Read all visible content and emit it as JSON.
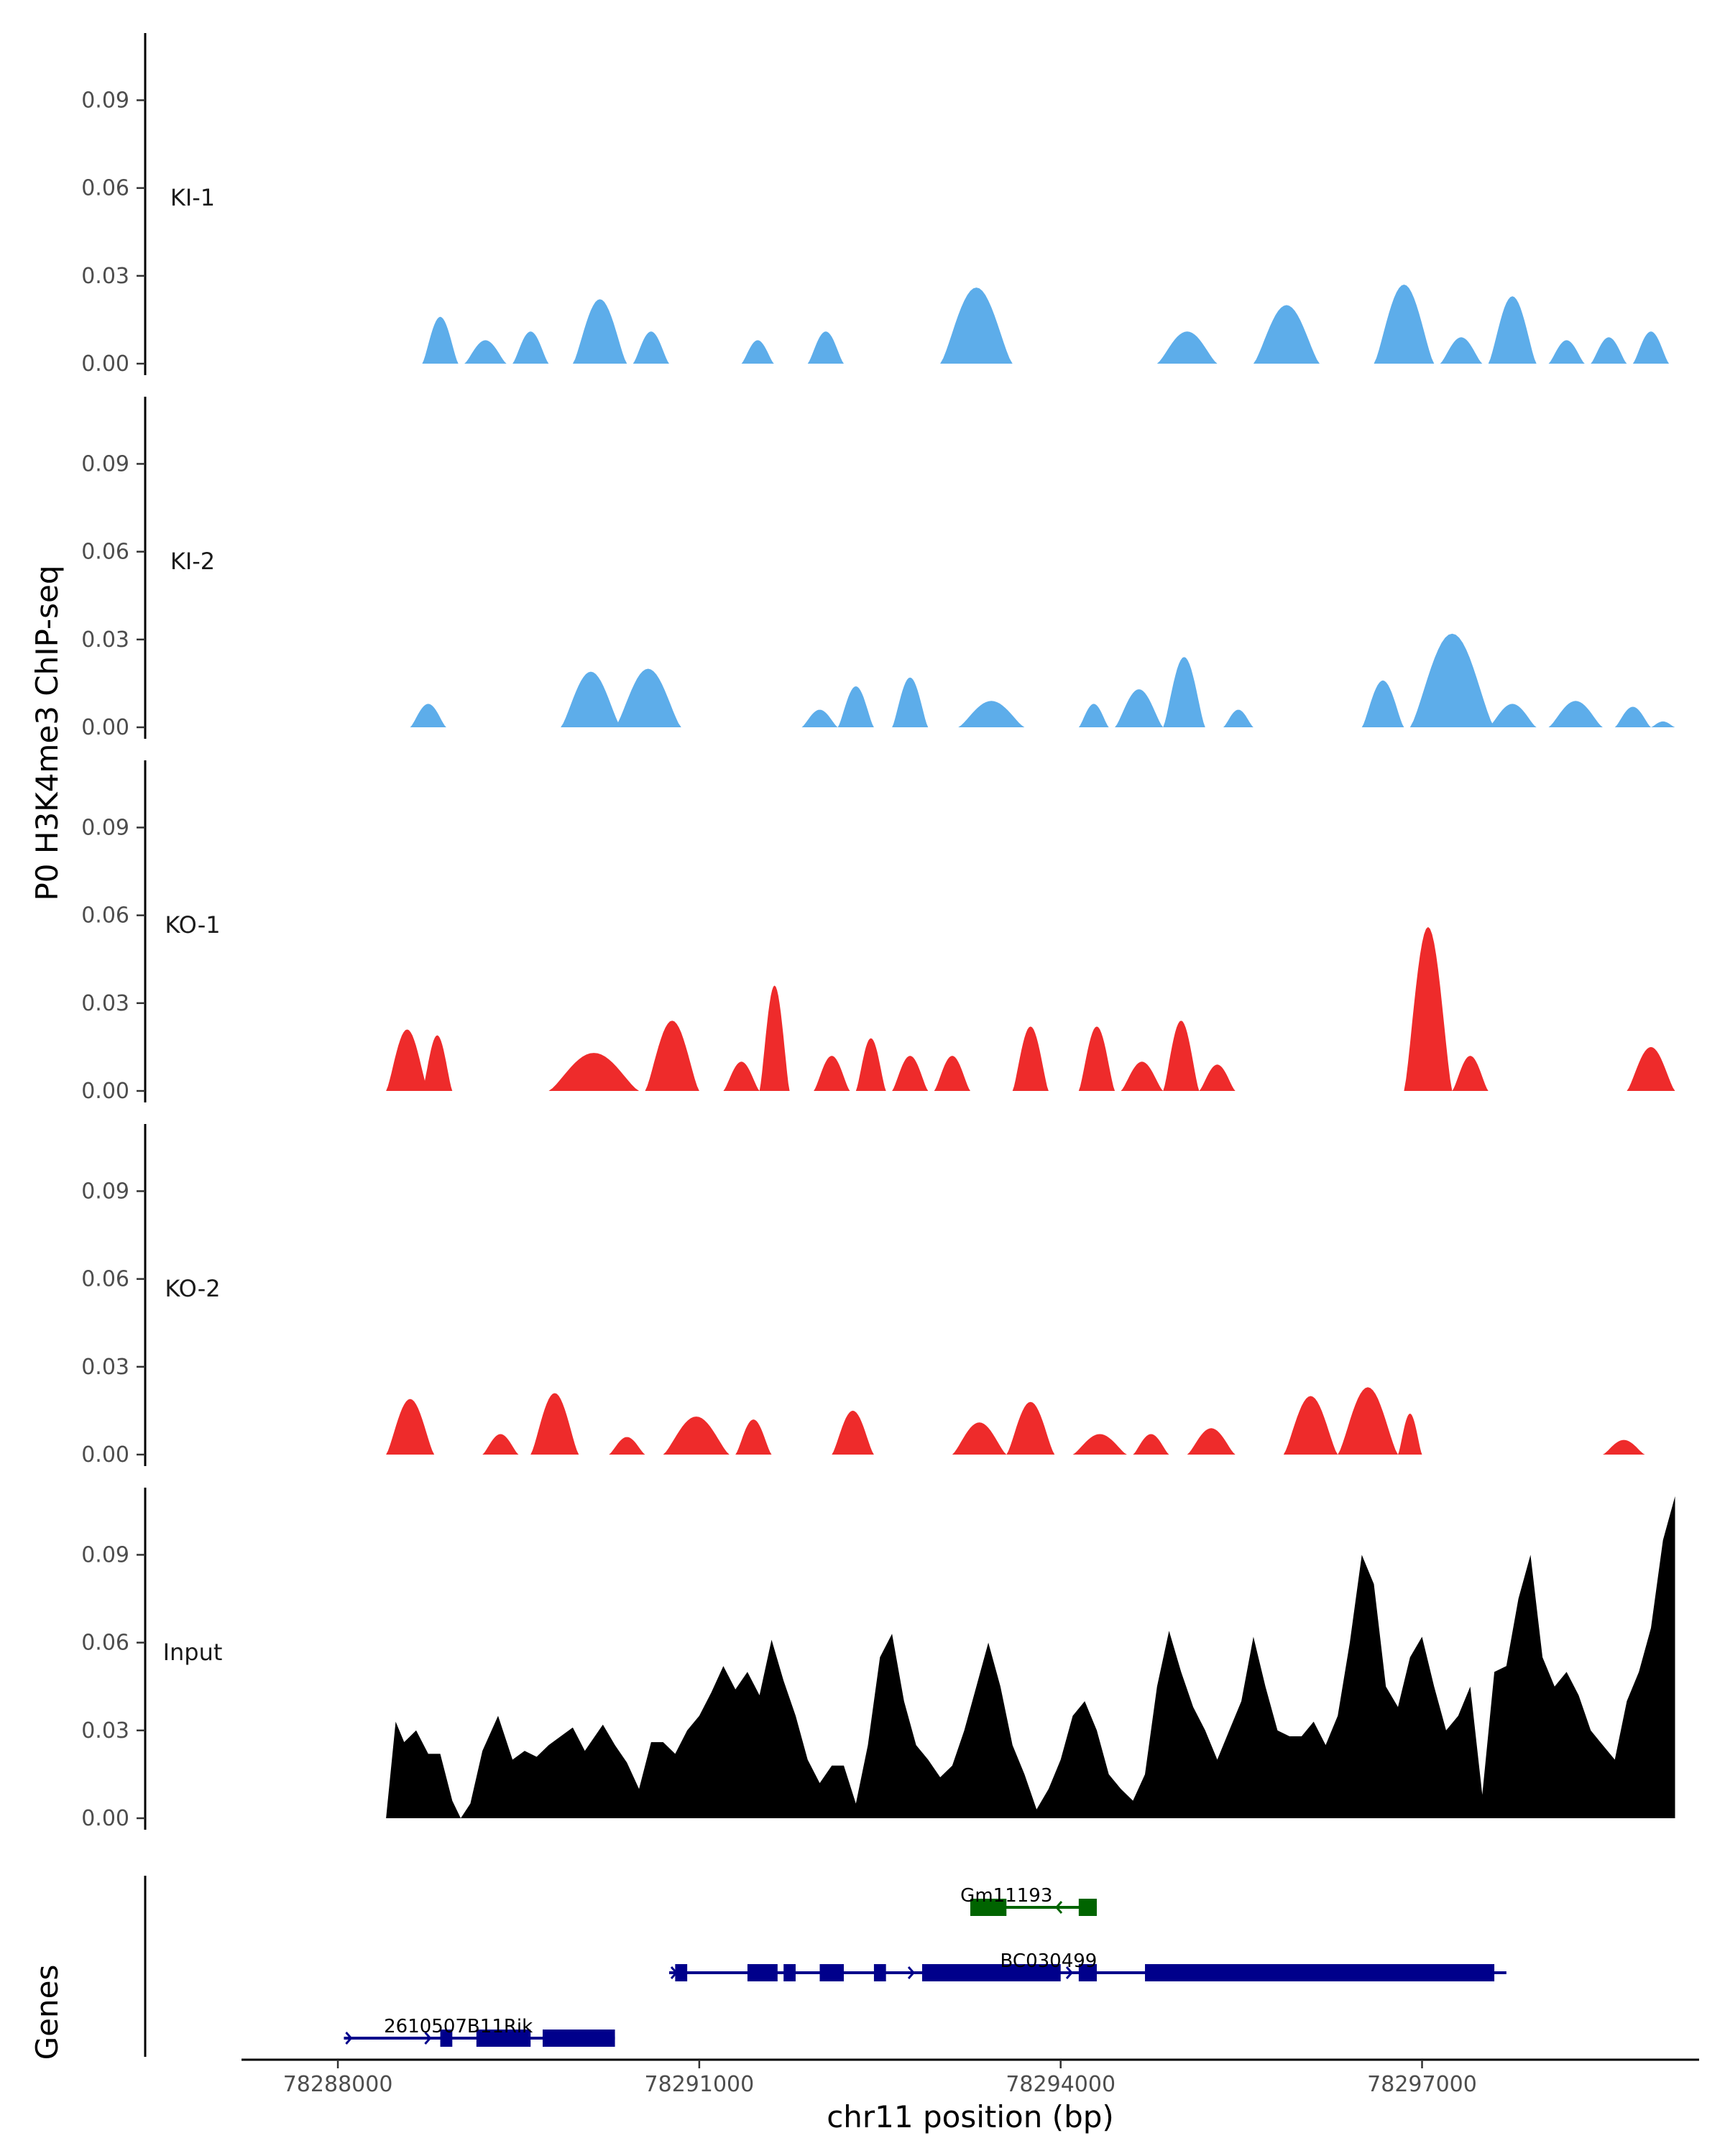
{
  "chart_data": {
    "type": "area",
    "ylabel": "P0 H3K4me3 ChIP-seq",
    "xlabel": "chr11 position (bp)",
    "genes_label": "Genes",
    "xlim": [
      78287200,
      78299300
    ],
    "ylim": [
      0,
      0.11
    ],
    "yticks": [
      "0.00",
      "0.03",
      "0.06",
      "0.09"
    ],
    "ytick_values": [
      0,
      0.03,
      0.06,
      0.09
    ],
    "xticks": [
      "78288000",
      "78291000",
      "78294000",
      "78297000"
    ],
    "xtick_values": [
      78288000,
      78291000,
      78294000,
      78297000
    ],
    "tracks": [
      {
        "name": "KI-1",
        "color": "#5DADEA",
        "peaks": [
          [
            78288700,
            78289000,
            0.016
          ],
          [
            78289050,
            78289400,
            0.008
          ],
          [
            78289450,
            78289750,
            0.011
          ],
          [
            78289950,
            78290400,
            0.022
          ],
          [
            78290450,
            78290750,
            0.011
          ],
          [
            78291350,
            78291620,
            0.008
          ],
          [
            78291900,
            78292200,
            0.011
          ],
          [
            78293000,
            78293600,
            0.026
          ],
          [
            78294800,
            78295300,
            0.011
          ],
          [
            78295600,
            78296150,
            0.02
          ],
          [
            78296600,
            78297100,
            0.027
          ],
          [
            78297150,
            78297500,
            0.009
          ],
          [
            78297550,
            78297950,
            0.023
          ],
          [
            78298050,
            78298350,
            0.008
          ],
          [
            78298400,
            78298700,
            0.009
          ],
          [
            78298750,
            78299050,
            0.011
          ]
        ]
      },
      {
        "name": "KI-2",
        "color": "#5DADEA",
        "peaks": [
          [
            78288600,
            78288900,
            0.008
          ],
          [
            78289850,
            78290350,
            0.019
          ],
          [
            78290300,
            78290850,
            0.02
          ],
          [
            78291850,
            78292150,
            0.006
          ],
          [
            78292150,
            78292450,
            0.014
          ],
          [
            78292600,
            78292900,
            0.017
          ],
          [
            78293150,
            78293700,
            0.009
          ],
          [
            78294150,
            78294400,
            0.008
          ],
          [
            78294450,
            78294850,
            0.013
          ],
          [
            78294850,
            78295200,
            0.024
          ],
          [
            78295350,
            78295600,
            0.006
          ],
          [
            78296500,
            78296850,
            0.016
          ],
          [
            78296900,
            78297600,
            0.032
          ],
          [
            78297550,
            78297950,
            0.008
          ],
          [
            78298050,
            78298500,
            0.009
          ],
          [
            78298600,
            78298900,
            0.007
          ],
          [
            78298900,
            78299100,
            0.002
          ]
        ]
      },
      {
        "name": "KO-1",
        "color": "#EE2B2B",
        "peaks": [
          [
            78288400,
            78288750,
            0.021
          ],
          [
            78288700,
            78288950,
            0.019
          ],
          [
            78289750,
            78290500,
            0.013
          ],
          [
            78290550,
            78291000,
            0.024
          ],
          [
            78291200,
            78291500,
            0.01
          ],
          [
            78291500,
            78291750,
            0.036
          ],
          [
            78291950,
            78292250,
            0.012
          ],
          [
            78292300,
            78292550,
            0.018
          ],
          [
            78292600,
            78292900,
            0.012
          ],
          [
            78292950,
            78293250,
            0.012
          ],
          [
            78293600,
            78293900,
            0.022
          ],
          [
            78294150,
            78294450,
            0.022
          ],
          [
            78294500,
            78294850,
            0.01
          ],
          [
            78294850,
            78295150,
            0.024
          ],
          [
            78295150,
            78295450,
            0.009
          ],
          [
            78296850,
            78297250,
            0.056
          ],
          [
            78297250,
            78297550,
            0.012
          ],
          [
            78298700,
            78299100,
            0.015
          ]
        ]
      },
      {
        "name": "KO-2",
        "color": "#EE2B2B",
        "peaks": [
          [
            78288400,
            78288800,
            0.019
          ],
          [
            78289200,
            78289500,
            0.007
          ],
          [
            78289600,
            78290000,
            0.021
          ],
          [
            78290250,
            78290550,
            0.006
          ],
          [
            78290700,
            78291250,
            0.013
          ],
          [
            78291300,
            78291600,
            0.012
          ],
          [
            78292100,
            78292450,
            0.015
          ],
          [
            78293100,
            78293550,
            0.011
          ],
          [
            78293550,
            78293950,
            0.018
          ],
          [
            78294100,
            78294550,
            0.007
          ],
          [
            78294600,
            78294900,
            0.007
          ],
          [
            78295050,
            78295450,
            0.009
          ],
          [
            78295850,
            78296300,
            0.02
          ],
          [
            78296300,
            78296800,
            0.023
          ],
          [
            78296800,
            78297000,
            0.014
          ],
          [
            78298500,
            78298850,
            0.005
          ]
        ]
      },
      {
        "name": "Input",
        "color": "#000000",
        "points": [
          [
            78288400,
            0.0
          ],
          [
            78288480,
            0.033
          ],
          [
            78288550,
            0.026
          ],
          [
            78288650,
            0.03
          ],
          [
            78288750,
            0.022
          ],
          [
            78288850,
            0.022
          ],
          [
            78288950,
            0.006
          ],
          [
            78289020,
            0.0
          ],
          [
            78289100,
            0.005
          ],
          [
            78289200,
            0.023
          ],
          [
            78289330,
            0.035
          ],
          [
            78289450,
            0.02
          ],
          [
            78289550,
            0.023
          ],
          [
            78289650,
            0.021
          ],
          [
            78289750,
            0.025
          ],
          [
            78289850,
            0.028
          ],
          [
            78289950,
            0.031
          ],
          [
            78290050,
            0.023
          ],
          [
            78290200,
            0.032
          ],
          [
            78290300,
            0.025
          ],
          [
            78290400,
            0.019
          ],
          [
            78290500,
            0.01
          ],
          [
            78290600,
            0.026
          ],
          [
            78290700,
            0.026
          ],
          [
            78290800,
            0.022
          ],
          [
            78290900,
            0.03
          ],
          [
            78291000,
            0.035
          ],
          [
            78291100,
            0.043
          ],
          [
            78291200,
            0.052
          ],
          [
            78291300,
            0.044
          ],
          [
            78291400,
            0.05
          ],
          [
            78291500,
            0.042
          ],
          [
            78291600,
            0.061
          ],
          [
            78291700,
            0.047
          ],
          [
            78291800,
            0.035
          ],
          [
            78291900,
            0.02
          ],
          [
            78292000,
            0.012
          ],
          [
            78292100,
            0.018
          ],
          [
            78292200,
            0.018
          ],
          [
            78292300,
            0.005
          ],
          [
            78292400,
            0.025
          ],
          [
            78292500,
            0.055
          ],
          [
            78292600,
            0.063
          ],
          [
            78292700,
            0.04
          ],
          [
            78292800,
            0.025
          ],
          [
            78292900,
            0.02
          ],
          [
            78293000,
            0.014
          ],
          [
            78293100,
            0.018
          ],
          [
            78293200,
            0.03
          ],
          [
            78293300,
            0.045
          ],
          [
            78293400,
            0.06
          ],
          [
            78293500,
            0.045
          ],
          [
            78293600,
            0.025
          ],
          [
            78293700,
            0.015
          ],
          [
            78293800,
            0.003
          ],
          [
            78293900,
            0.01
          ],
          [
            78294000,
            0.02
          ],
          [
            78294100,
            0.035
          ],
          [
            78294200,
            0.04
          ],
          [
            78294300,
            0.03
          ],
          [
            78294400,
            0.015
          ],
          [
            78294500,
            0.01
          ],
          [
            78294600,
            0.006
          ],
          [
            78294700,
            0.015
          ],
          [
            78294800,
            0.045
          ],
          [
            78294900,
            0.064
          ],
          [
            78295000,
            0.05
          ],
          [
            78295100,
            0.038
          ],
          [
            78295200,
            0.03
          ],
          [
            78295300,
            0.02
          ],
          [
            78295400,
            0.03
          ],
          [
            78295500,
            0.04
          ],
          [
            78295600,
            0.062
          ],
          [
            78295700,
            0.045
          ],
          [
            78295800,
            0.03
          ],
          [
            78295900,
            0.028
          ],
          [
            78296000,
            0.028
          ],
          [
            78296100,
            0.033
          ],
          [
            78296200,
            0.025
          ],
          [
            78296300,
            0.035
          ],
          [
            78296400,
            0.06
          ],
          [
            78296500,
            0.09
          ],
          [
            78296600,
            0.08
          ],
          [
            78296700,
            0.045
          ],
          [
            78296800,
            0.038
          ],
          [
            78296900,
            0.055
          ],
          [
            78297000,
            0.062
          ],
          [
            78297100,
            0.045
          ],
          [
            78297200,
            0.03
          ],
          [
            78297300,
            0.035
          ],
          [
            78297400,
            0.045
          ],
          [
            78297500,
            0.008
          ],
          [
            78297600,
            0.05
          ],
          [
            78297700,
            0.052
          ],
          [
            78297800,
            0.075
          ],
          [
            78297900,
            0.09
          ],
          [
            78298000,
            0.055
          ],
          [
            78298100,
            0.045
          ],
          [
            78298200,
            0.05
          ],
          [
            78298300,
            0.042
          ],
          [
            78298400,
            0.03
          ],
          [
            78298500,
            0.025
          ],
          [
            78298600,
            0.02
          ],
          [
            78298700,
            0.04
          ],
          [
            78298800,
            0.05
          ],
          [
            78298900,
            0.065
          ],
          [
            78299000,
            0.095
          ],
          [
            78299100,
            0.11
          ]
        ]
      }
    ],
    "genes": [
      {
        "name": "Gm11193",
        "color": "#006400",
        "start": 78293250,
        "end": 78294300,
        "strand": "-",
        "row": 0,
        "label_x": 78293550,
        "exons": [
          [
            78293250,
            78293550
          ],
          [
            78294150,
            78294300
          ]
        ]
      },
      {
        "name": "BC030499",
        "color": "#00008B",
        "start": 78290750,
        "end": 78297700,
        "strand": "+",
        "row": 1,
        "label_x": 78293900,
        "exons": [
          [
            78290800,
            78290900
          ],
          [
            78291400,
            78291650
          ],
          [
            78291700,
            78291800
          ],
          [
            78292000,
            78292200
          ],
          [
            78292450,
            78292550
          ],
          [
            78292850,
            78294000
          ],
          [
            78294150,
            78294300
          ],
          [
            78294700,
            78297600
          ]
        ]
      },
      {
        "name": "2610507B11Rik",
        "color": "#00008B",
        "start": 78288050,
        "end": 78290300,
        "strand": "+",
        "row": 2,
        "label_x": 78289000,
        "exons": [
          [
            78288850,
            78288950
          ],
          [
            78289150,
            78289600
          ],
          [
            78289700,
            78290300
          ]
        ]
      }
    ]
  }
}
